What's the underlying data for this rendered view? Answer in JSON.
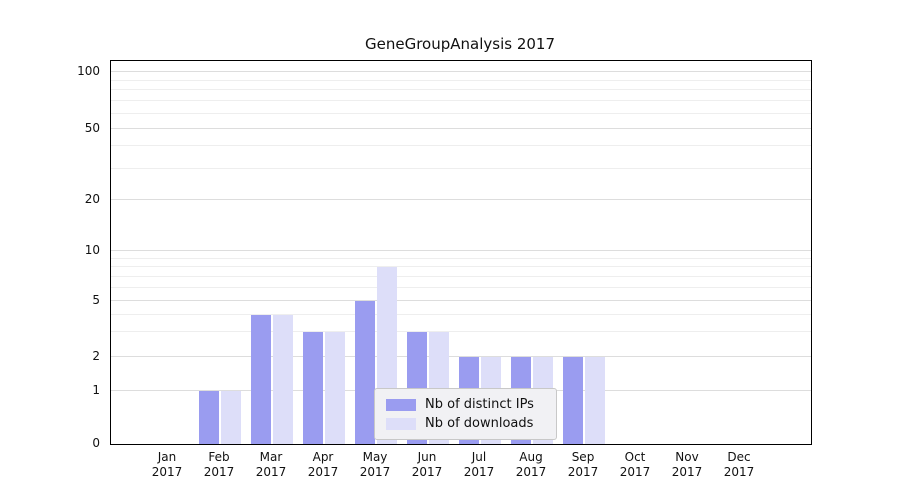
{
  "chart_data": {
    "type": "bar",
    "title": "GeneGroupAnalysis 2017",
    "categories": [
      "Jan",
      "Feb",
      "Mar",
      "Apr",
      "May",
      "Jun",
      "Jul",
      "Aug",
      "Sep",
      "Oct",
      "Nov",
      "Dec"
    ],
    "year_label": "2017",
    "series": [
      {
        "name": "Nb of distinct IPs",
        "color": "#9a9cf0",
        "values": [
          0,
          1,
          4,
          3,
          5,
          3,
          2,
          2,
          2,
          0,
          0,
          0
        ]
      },
      {
        "name": "Nb of downloads",
        "color": "#dddef9",
        "values": [
          0,
          1,
          4,
          3,
          8,
          3,
          2,
          2,
          2,
          0,
          0,
          0
        ]
      }
    ],
    "yticks": [
      0,
      1,
      2,
      5,
      10,
      20,
      50,
      100
    ],
    "minor_gridlines": [
      3,
      4,
      6,
      7,
      8,
      9,
      30,
      40,
      60,
      70,
      80,
      90
    ],
    "xlabel": "",
    "ylabel": "",
    "ylim": [
      0,
      115
    ],
    "yscale": "symlog",
    "grid": "horizontal",
    "legend_position": "lower center inside plot"
  }
}
